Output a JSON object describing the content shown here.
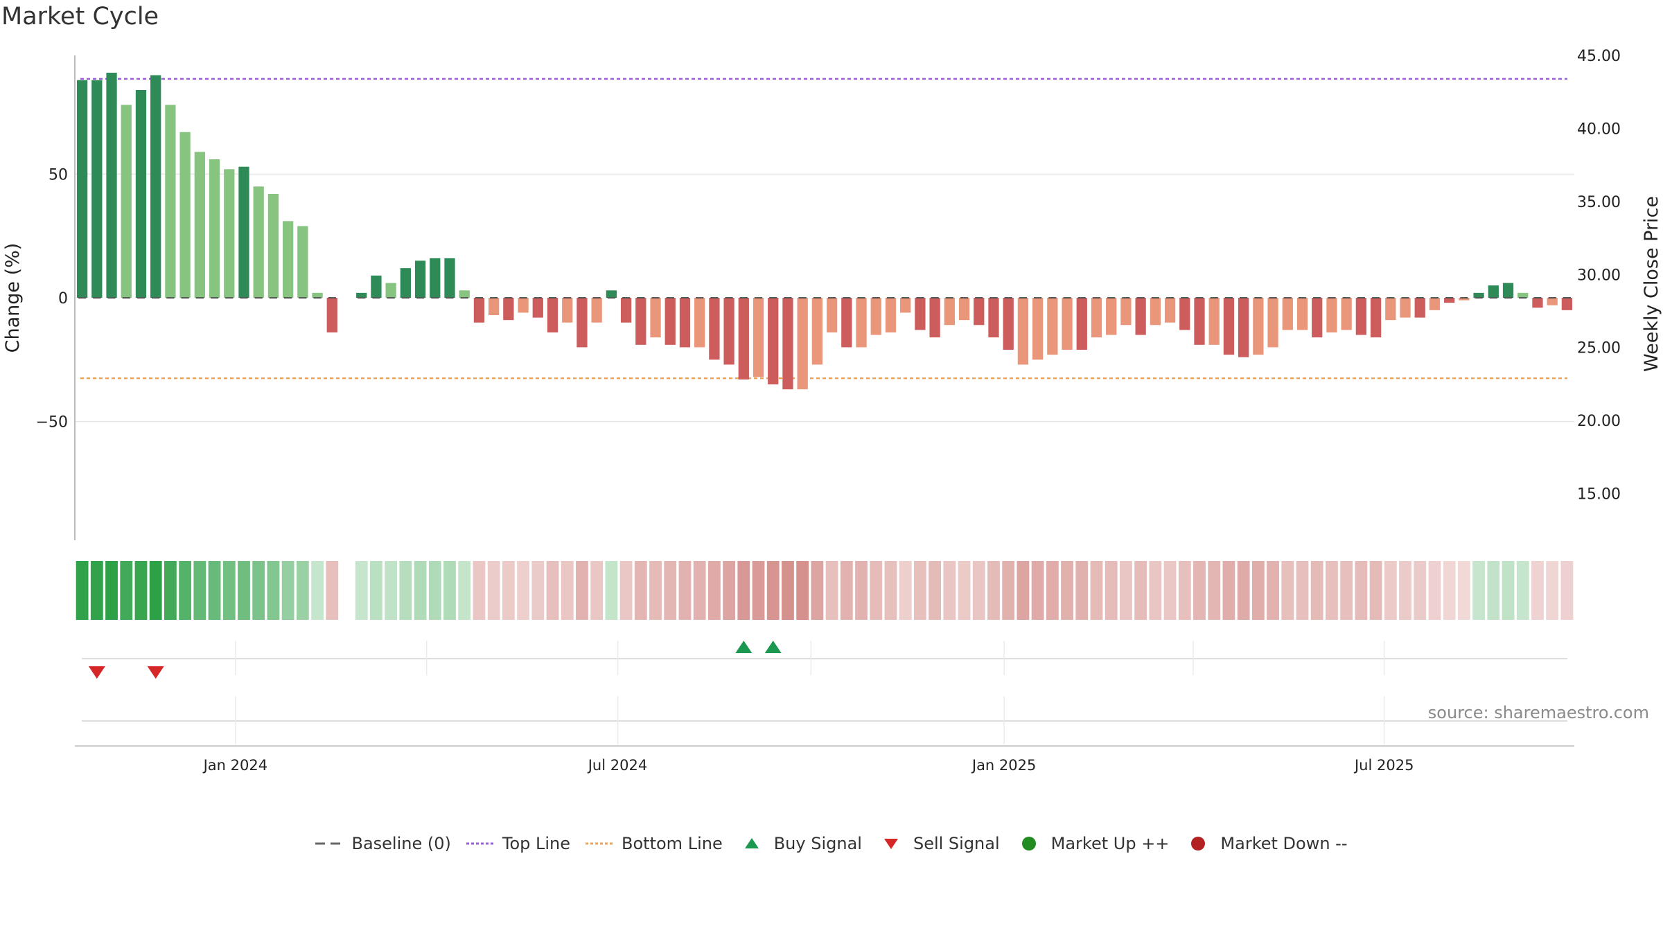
{
  "title": "Market Cycle",
  "source_text": "source: sharemaestro.com",
  "colors": {
    "up_dark": "#2e8b57",
    "up_light": "#86c47f",
    "down_dark": "#cd5c5c",
    "down_light": "#e9967a",
    "top_line": "#9c5fd8",
    "bottom_line": "#e8a45c",
    "buy": "#1a9850",
    "sell": "#d62728",
    "market_up": "#228b22",
    "market_down": "#b22222"
  },
  "legend": [
    {
      "label": "Baseline (0)",
      "icon": "dash-line"
    },
    {
      "label": "Top Line",
      "icon": "dotted-line-purple"
    },
    {
      "label": "Bottom Line",
      "icon": "dotted-line-orange"
    },
    {
      "label": "Buy Signal",
      "icon": "triangle-up-green"
    },
    {
      "label": "Sell Signal",
      "icon": "triangle-down-red"
    },
    {
      "label": "Market Up ++",
      "icon": "circle-green"
    },
    {
      "label": "Market Down --",
      "icon": "circle-red"
    }
  ],
  "chart_data": {
    "type": "bar",
    "ylabel": "Change (%)",
    "y2label": "Weekly Close Price",
    "ylim": [
      -98,
      98
    ],
    "yticks": [
      -50,
      0,
      50
    ],
    "ytick_labels": [
      "−50",
      "0",
      "50"
    ],
    "y2lim": [
      11.8,
      45.0
    ],
    "y2ticks": [
      15,
      20,
      25,
      30,
      35,
      40,
      45
    ],
    "y2tick_labels": [
      "15.00",
      "20.00",
      "25.00",
      "30.00",
      "35.00",
      "40.00",
      "45.00"
    ],
    "top_line": 88.5,
    "bottom_line": -32.5,
    "start_date": "2023-10-20",
    "end_date": "2025-09-26",
    "x_ticks": [
      {
        "date": "2024-01-01",
        "label": "Jan 2024"
      },
      {
        "date": "2024-07-01",
        "label": "Jul 2024"
      },
      {
        "date": "2025-01-01",
        "label": "Jan 2025"
      },
      {
        "date": "2025-07-01",
        "label": "Jul 2025"
      }
    ],
    "grid": true,
    "legend_position": "bottom",
    "values": [
      88,
      88,
      91,
      78,
      84,
      90,
      78,
      67,
      59,
      56,
      52,
      53,
      45,
      42,
      31,
      29,
      2,
      -14,
      null,
      2,
      9,
      6,
      12,
      15,
      16,
      16,
      3,
      -10,
      -7,
      -9,
      -6,
      -8,
      -14,
      -10,
      -20,
      -10,
      3,
      -10,
      -19,
      -16,
      -19,
      -20,
      -20,
      -25,
      -27,
      -33,
      -32,
      -35,
      -37,
      -37,
      -27,
      -14,
      -20,
      -20,
      -15,
      -14,
      -6,
      -13,
      -16,
      -11,
      -9,
      -11,
      -16,
      -21,
      -27,
      -25,
      -23,
      -21,
      -21,
      -16,
      -15,
      -11,
      -15,
      -11,
      -10,
      -13,
      -19,
      -19,
      -23,
      -24,
      -23,
      -20,
      -13,
      -13,
      -16,
      -14,
      -13,
      -15,
      -16,
      -9,
      -8,
      -8,
      -5,
      -2,
      -1,
      2,
      5,
      6,
      2,
      -4,
      -3,
      -5
    ],
    "shade": [
      "d",
      "d",
      "d",
      "l",
      "d",
      "d",
      "l",
      "l",
      "l",
      "l",
      "l",
      "d",
      "l",
      "l",
      "l",
      "l",
      "l",
      "d",
      null,
      "d",
      "d",
      "l",
      "d",
      "d",
      "d",
      "d",
      "l",
      "d",
      "l",
      "d",
      "l",
      "d",
      "d",
      "l",
      "d",
      "l",
      "d",
      "d",
      "d",
      "l",
      "d",
      "d",
      "l",
      "d",
      "d",
      "d",
      "l",
      "d",
      "d",
      "l",
      "l",
      "l",
      "d",
      "l",
      "l",
      "l",
      "l",
      "d",
      "d",
      "l",
      "l",
      "d",
      "d",
      "d",
      "l",
      "l",
      "l",
      "l",
      "d",
      "l",
      "l",
      "l",
      "d",
      "l",
      "l",
      "d",
      "d",
      "l",
      "d",
      "d",
      "l",
      "l",
      "l",
      "l",
      "d",
      "l",
      "l",
      "d",
      "d",
      "l",
      "l",
      "d",
      "l",
      "d",
      "l",
      "d",
      "d",
      "d",
      "l",
      "d",
      "l",
      "d"
    ],
    "buy_signals": [
      "2024-08-30",
      "2024-09-13"
    ],
    "sell_signals": [
      "2023-10-27",
      "2023-11-24"
    ]
  }
}
